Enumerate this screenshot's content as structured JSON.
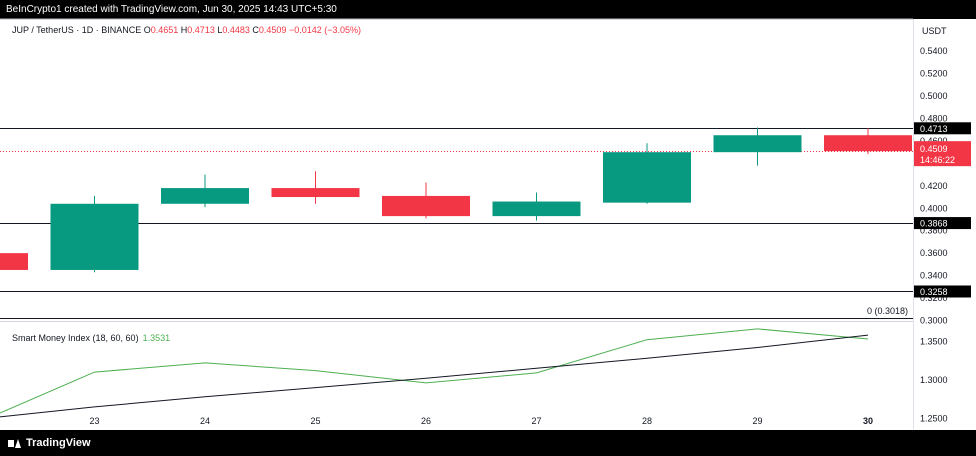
{
  "header": {
    "attribution": "BeInCrypto1 created with TradingView.com, Jun 30, 2025 14:43 UTC+5:30"
  },
  "legend": {
    "symbol": "JUP / TetherUS · 1D · BINANCE",
    "o_label": "O",
    "o": "0.4651",
    "h_label": "H",
    "h": "0.4713",
    "l_label": "L",
    "l": "0.4483",
    "c_label": "C",
    "c": "0.4509",
    "change": "−0.0142 (−3.05%)"
  },
  "indicator": {
    "name": "Smart Money Index (18, 60, 60)",
    "value": "1.3531"
  },
  "footer": {
    "brand": "TradingView"
  },
  "colors": {
    "up": "#089981",
    "down": "#f23645",
    "smi_line": "#4caf50",
    "signal_line": "#131722",
    "pane_bg": "#ffffff",
    "frame_bg": "#000000",
    "axis_text": "#131722",
    "price_tag": "#f23645"
  },
  "chart_data": [
    {
      "type": "candlestick",
      "currency": "USDT",
      "x": [
        "22",
        "23",
        "24",
        "25",
        "26",
        "27",
        "28",
        "29",
        "30"
      ],
      "x_tick_labels": [
        "23",
        "24",
        "25",
        "26",
        "27",
        "28",
        "29",
        "30"
      ],
      "ohlc": [
        {
          "x": "22",
          "open": 0.36,
          "high": 0.36,
          "low": 0.345,
          "close": 0.345
        },
        {
          "x": "23",
          "open": 0.345,
          "high": 0.411,
          "low": 0.343,
          "close": 0.404
        },
        {
          "x": "24",
          "open": 0.404,
          "high": 0.43,
          "low": 0.401,
          "close": 0.418
        },
        {
          "x": "25",
          "open": 0.418,
          "high": 0.433,
          "low": 0.404,
          "close": 0.41
        },
        {
          "x": "26",
          "open": 0.411,
          "high": 0.423,
          "low": 0.391,
          "close": 0.393
        },
        {
          "x": "27",
          "open": 0.393,
          "high": 0.414,
          "low": 0.389,
          "close": 0.406
        },
        {
          "x": "28",
          "open": 0.405,
          "high": 0.458,
          "low": 0.404,
          "close": 0.45
        },
        {
          "x": "29",
          "open": 0.45,
          "high": 0.472,
          "low": 0.438,
          "close": 0.4651
        },
        {
          "x": "30",
          "open": 0.4651,
          "high": 0.4713,
          "low": 0.4483,
          "close": 0.4509
        }
      ],
      "y_ticks": [
        "0.5400",
        "0.5200",
        "0.5000",
        "0.4800",
        "0.4600",
        "0.4200",
        "0.4000",
        "0.3800",
        "0.3600",
        "0.3400",
        "0.3200",
        "0.3000"
      ],
      "ylim": [
        0.2995,
        0.55
      ],
      "horizontal_levels": [
        {
          "value": 0.4713,
          "label": "0.4713"
        },
        {
          "value": 0.3868,
          "label": "0.3868"
        },
        {
          "value": 0.3258,
          "label": "0.3258"
        },
        {
          "value": 0.3018,
          "label": "0 (0.3018)"
        }
      ],
      "last_price": {
        "value": 0.4509,
        "label": "0.4509",
        "countdown": "14:46:22"
      }
    },
    {
      "type": "line",
      "title": "Smart Money Index (18, 60, 60)",
      "x": [
        "22",
        "23",
        "24",
        "25",
        "26",
        "27",
        "28",
        "29",
        "30"
      ],
      "series": [
        {
          "values": [
            1.257,
            1.31,
            1.322,
            1.312,
            1.296,
            1.309,
            1.352,
            1.366,
            1.353
          ]
        },
        {
          "values": [
            1.252,
            1.265,
            1.278,
            1.29,
            1.302,
            1.315,
            1.328,
            1.342,
            1.358
          ]
        }
      ],
      "y_ticks": [
        "1.3500",
        "1.3000",
        "1.2500"
      ],
      "ylim": [
        1.235,
        1.375
      ]
    }
  ]
}
